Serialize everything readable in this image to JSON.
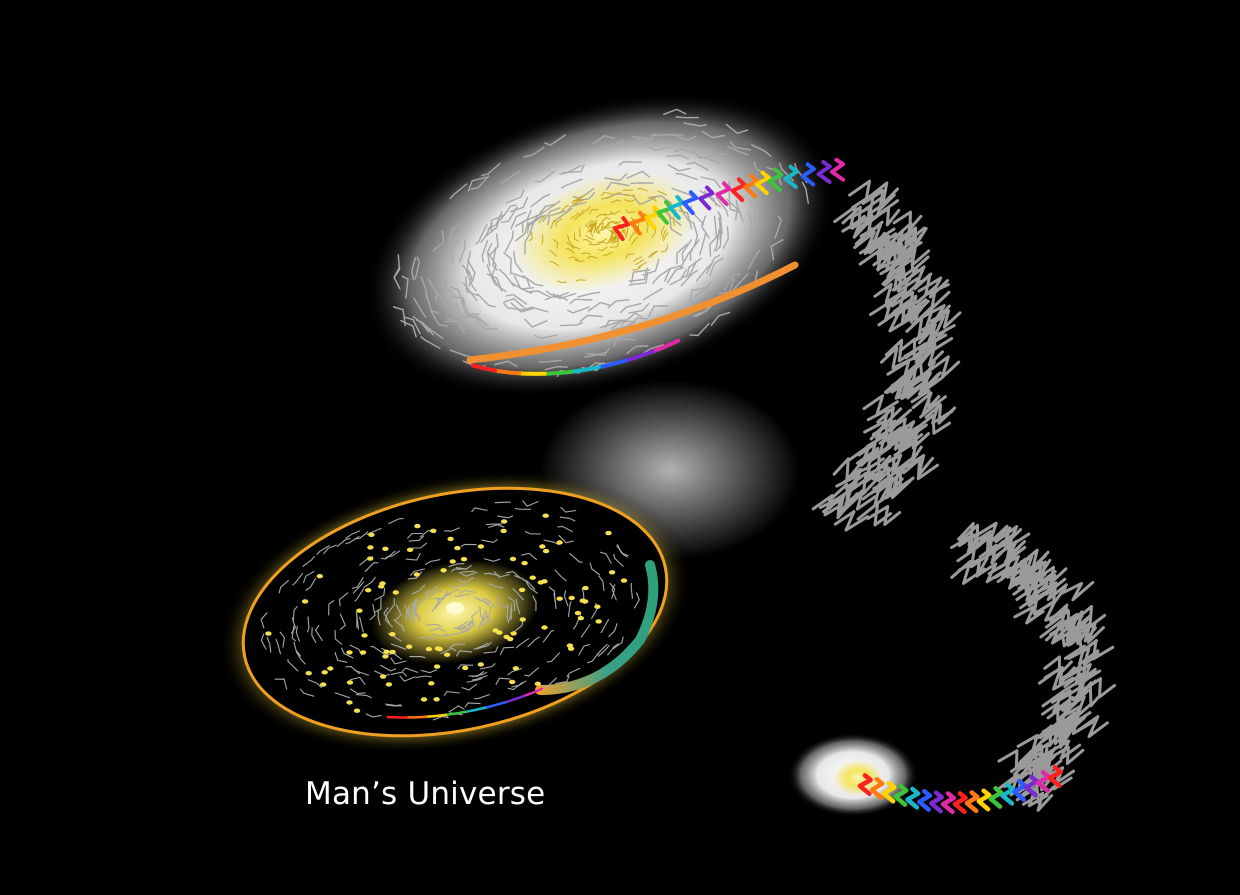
{
  "caption": "Man’s Universe",
  "colors": {
    "background": "#000000",
    "glow_white": "#ffffff",
    "core_yellow": "#f3e14a",
    "rim_orange": "#f0a020",
    "strand_gray": "#9a9a9a"
  },
  "rainbow": [
    "#ff2020",
    "#ff7a10",
    "#ffd400",
    "#3cc43c",
    "#18b8c8",
    "#2a5cff",
    "#7a2ad0",
    "#e02aa8"
  ]
}
